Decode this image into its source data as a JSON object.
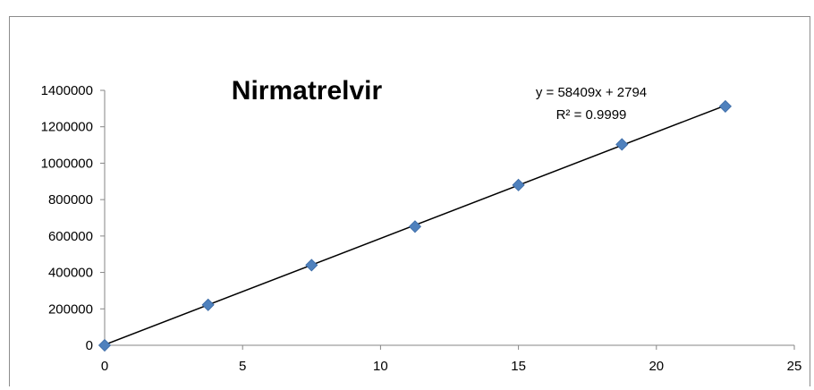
{
  "chart_data": {
    "type": "scatter",
    "title": "Nirmatrelvir",
    "xlabel": "",
    "ylabel": "",
    "xlim": [
      0,
      25
    ],
    "ylim": [
      0,
      1400000
    ],
    "x_ticks": [
      "0",
      "5",
      "10",
      "15",
      "20",
      "25"
    ],
    "y_ticks": [
      "0",
      "200000",
      "400000",
      "600000",
      "800000",
      "1000000",
      "1200000",
      "1400000"
    ],
    "points": [
      {
        "x": 0,
        "y": 0
      },
      {
        "x": 3.75,
        "y": 222000
      },
      {
        "x": 7.5,
        "y": 440000
      },
      {
        "x": 11.25,
        "y": 652000
      },
      {
        "x": 15,
        "y": 880000
      },
      {
        "x": 18.75,
        "y": 1103000
      },
      {
        "x": 22.5,
        "y": 1312000
      }
    ],
    "trendline": {
      "slope": 58409,
      "intercept": 2794,
      "x_range": [
        0,
        22.5
      ]
    },
    "equation_text": "y = 58409x + 2794",
    "r2_text": "R² = 0.9999",
    "marker_color": "#4f81bd",
    "line_color": "#000000",
    "grid": false,
    "legend": "none"
  }
}
